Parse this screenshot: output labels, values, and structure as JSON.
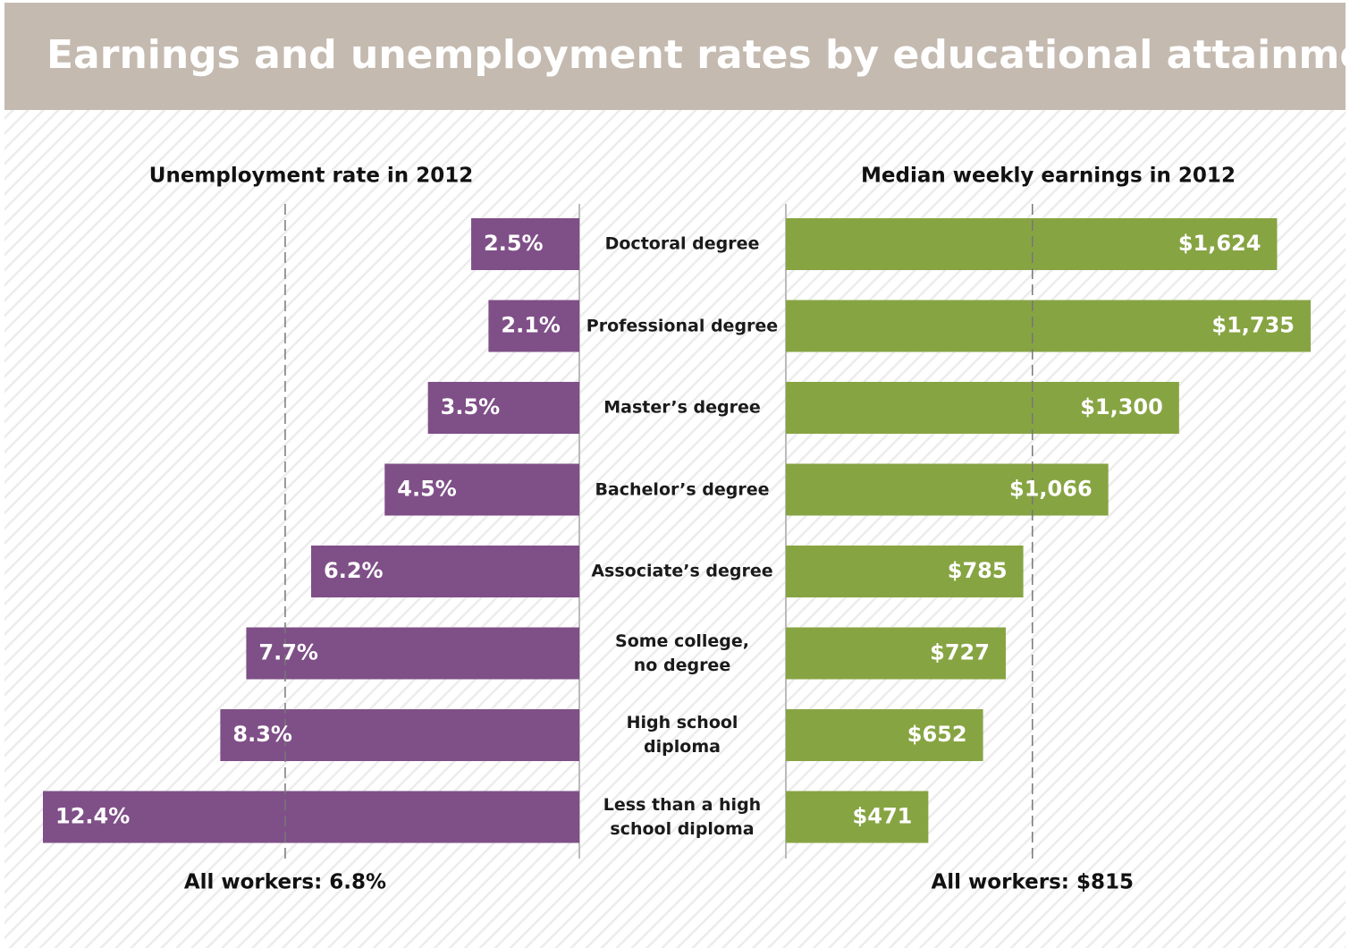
{
  "title": "Earnings and unemployment rates by educational attainment",
  "categories": [
    "Doctoral degree",
    "Professional degree",
    "Master’s degree",
    "Bachelor’s degree",
    "Associate’s degree",
    "Some college,\nno degree",
    "High school\ndiploma",
    "Less than a high\nschool diploma"
  ],
  "chart_data": [
    {
      "type": "bar",
      "title": "Unemployment rate in 2012",
      "direction": "left",
      "color": "#7f4f87",
      "values": [
        2.5,
        2.1,
        3.5,
        4.5,
        6.2,
        7.7,
        8.3,
        12.4
      ],
      "value_labels": [
        "2.5%",
        "2.1%",
        "3.5%",
        "4.5%",
        "6.2%",
        "7.7%",
        "8.3%",
        "12.4%"
      ],
      "xlim": [
        0,
        12.4
      ],
      "reference": {
        "value": 6.8,
        "label": "All workers: 6.8%"
      }
    },
    {
      "type": "bar",
      "title": "Median weekly earnings in 2012",
      "direction": "right",
      "color": "#87a443",
      "values": [
        1624,
        1735,
        1300,
        1066,
        785,
        727,
        652,
        471
      ],
      "value_labels": [
        "$1,624",
        "$1,735",
        "$1,300",
        "$1,066",
        "$785",
        "$727",
        "$652",
        "$471"
      ],
      "xlim": [
        0,
        1735
      ],
      "reference": {
        "value": 815,
        "label": "All workers: $815"
      }
    }
  ]
}
